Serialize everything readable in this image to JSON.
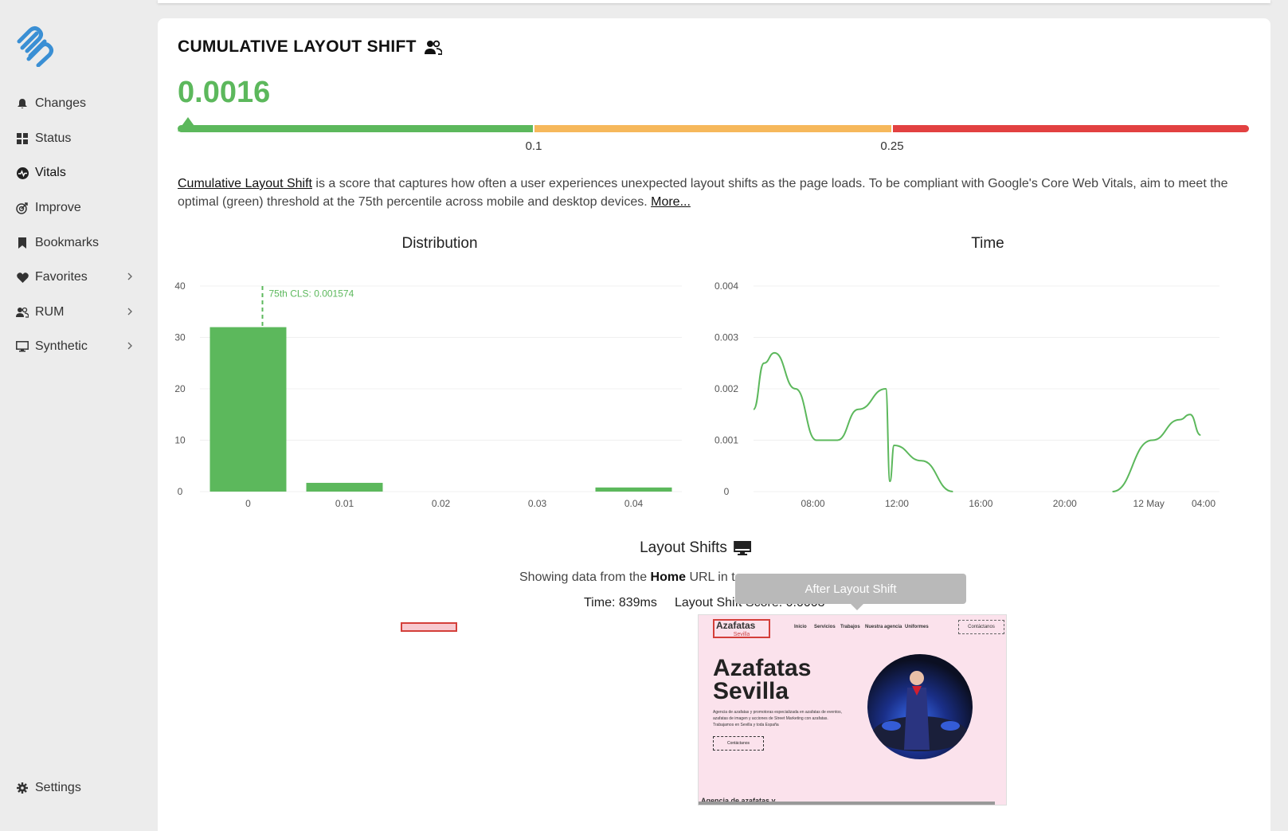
{
  "sidebar": {
    "logo": "paperclip-logo",
    "items": [
      {
        "label": "Changes",
        "icon": "bell-icon"
      },
      {
        "label": "Status",
        "icon": "grid-icon"
      },
      {
        "label": "Vitals",
        "icon": "pulse-icon",
        "active": true
      },
      {
        "label": "Improve",
        "icon": "target-icon"
      },
      {
        "label": "Bookmarks",
        "icon": "bookmark-icon"
      },
      {
        "label": "Favorites",
        "icon": "heart-icon"
      },
      {
        "label": "RUM",
        "icon": "users-icon"
      },
      {
        "label": "Synthetic",
        "icon": "monitor-icon"
      }
    ],
    "settings": {
      "label": "Settings",
      "icon": "gear-icon"
    }
  },
  "metric": {
    "title": "CUMULATIVE LAYOUT SHIFT",
    "value": "0.0016",
    "thresholds": [
      "0.1",
      "0.25"
    ],
    "colors": {
      "good": "#5cb85c",
      "needs_improvement": "#f6b85b",
      "poor": "#e24141"
    },
    "description_link": "Cumulative Layout Shift",
    "description_text": " is a score that captures how often a user experiences unexpected layout shifts as the page loads. To be compliant with Google's Core Web Vitals, aim to meet the optimal (green) threshold at the 75th percentile across mobile and desktop devices. ",
    "more_link": "More..."
  },
  "chart_data": [
    {
      "type": "bar",
      "title": "Distribution",
      "categories": [
        "0",
        "0.01",
        "0.02",
        "0.03",
        "0.04"
      ],
      "values": [
        32,
        1.7,
        0,
        0,
        0.8
      ],
      "ylim": [
        0,
        40
      ],
      "yticks": [
        "0",
        "10",
        "20",
        "30",
        "40"
      ],
      "annotation": "75th CLS: 0.001574",
      "grid": true
    },
    {
      "type": "line",
      "title": "Time",
      "xticks": [
        "08:00",
        "12:00",
        "16:00",
        "20:00",
        "12 May",
        "04:00"
      ],
      "yticks": [
        "0",
        "0.001",
        "0.002",
        "0.003",
        "0.004"
      ],
      "ylim": [
        0,
        0.004
      ],
      "segments": [
        [
          [
            0,
            0.0016
          ],
          [
            0.5,
            0.0025
          ],
          [
            1.0,
            0.0027
          ],
          [
            2.0,
            0.002
          ],
          [
            3.0,
            0.001
          ],
          [
            4.0,
            0.001
          ],
          [
            5.0,
            0.0016
          ],
          [
            6.3,
            0.002
          ],
          [
            6.5,
            0.0002
          ],
          [
            6.7,
            0.0009
          ],
          [
            8.0,
            0.0006
          ],
          [
            9.5,
            0.0
          ]
        ],
        [
          [
            17.1,
            0.0
          ],
          [
            19.0,
            0.001
          ],
          [
            20.3,
            0.0014
          ],
          [
            20.8,
            0.0015
          ],
          [
            21.3,
            0.0011
          ]
        ]
      ],
      "grid": true
    }
  ],
  "layout_shifts": {
    "title": "Layout Shifts",
    "subtitle_prefix": "Showing data from the ",
    "subtitle_url": "Home",
    "subtitle_suffix": " URL in t",
    "time": "Time: 839ms",
    "score": "Layout Shift Score: 0.0003",
    "tooltip": "After Layout Shift"
  },
  "screenshot": {
    "logo_text": "Azafatas",
    "logo_sub": "Sevilla",
    "menu": [
      "Inicio",
      "Servicios",
      "Trabajos",
      "Nuestra agencia",
      "Uniformes"
    ],
    "contact": "Contáctanos",
    "heading_line1": "Azafatas",
    "heading_line2": "Sevilla",
    "paragraph": "Agencia de azafatas y promotoras especializada en azafatas de eventos, azafatas de imagen y acciones de Street Marketing con azafatas. Trabajamos en Sevilla y toda España",
    "button": "Contáctanos",
    "bottom_text": "Agencia de azafatas y"
  }
}
